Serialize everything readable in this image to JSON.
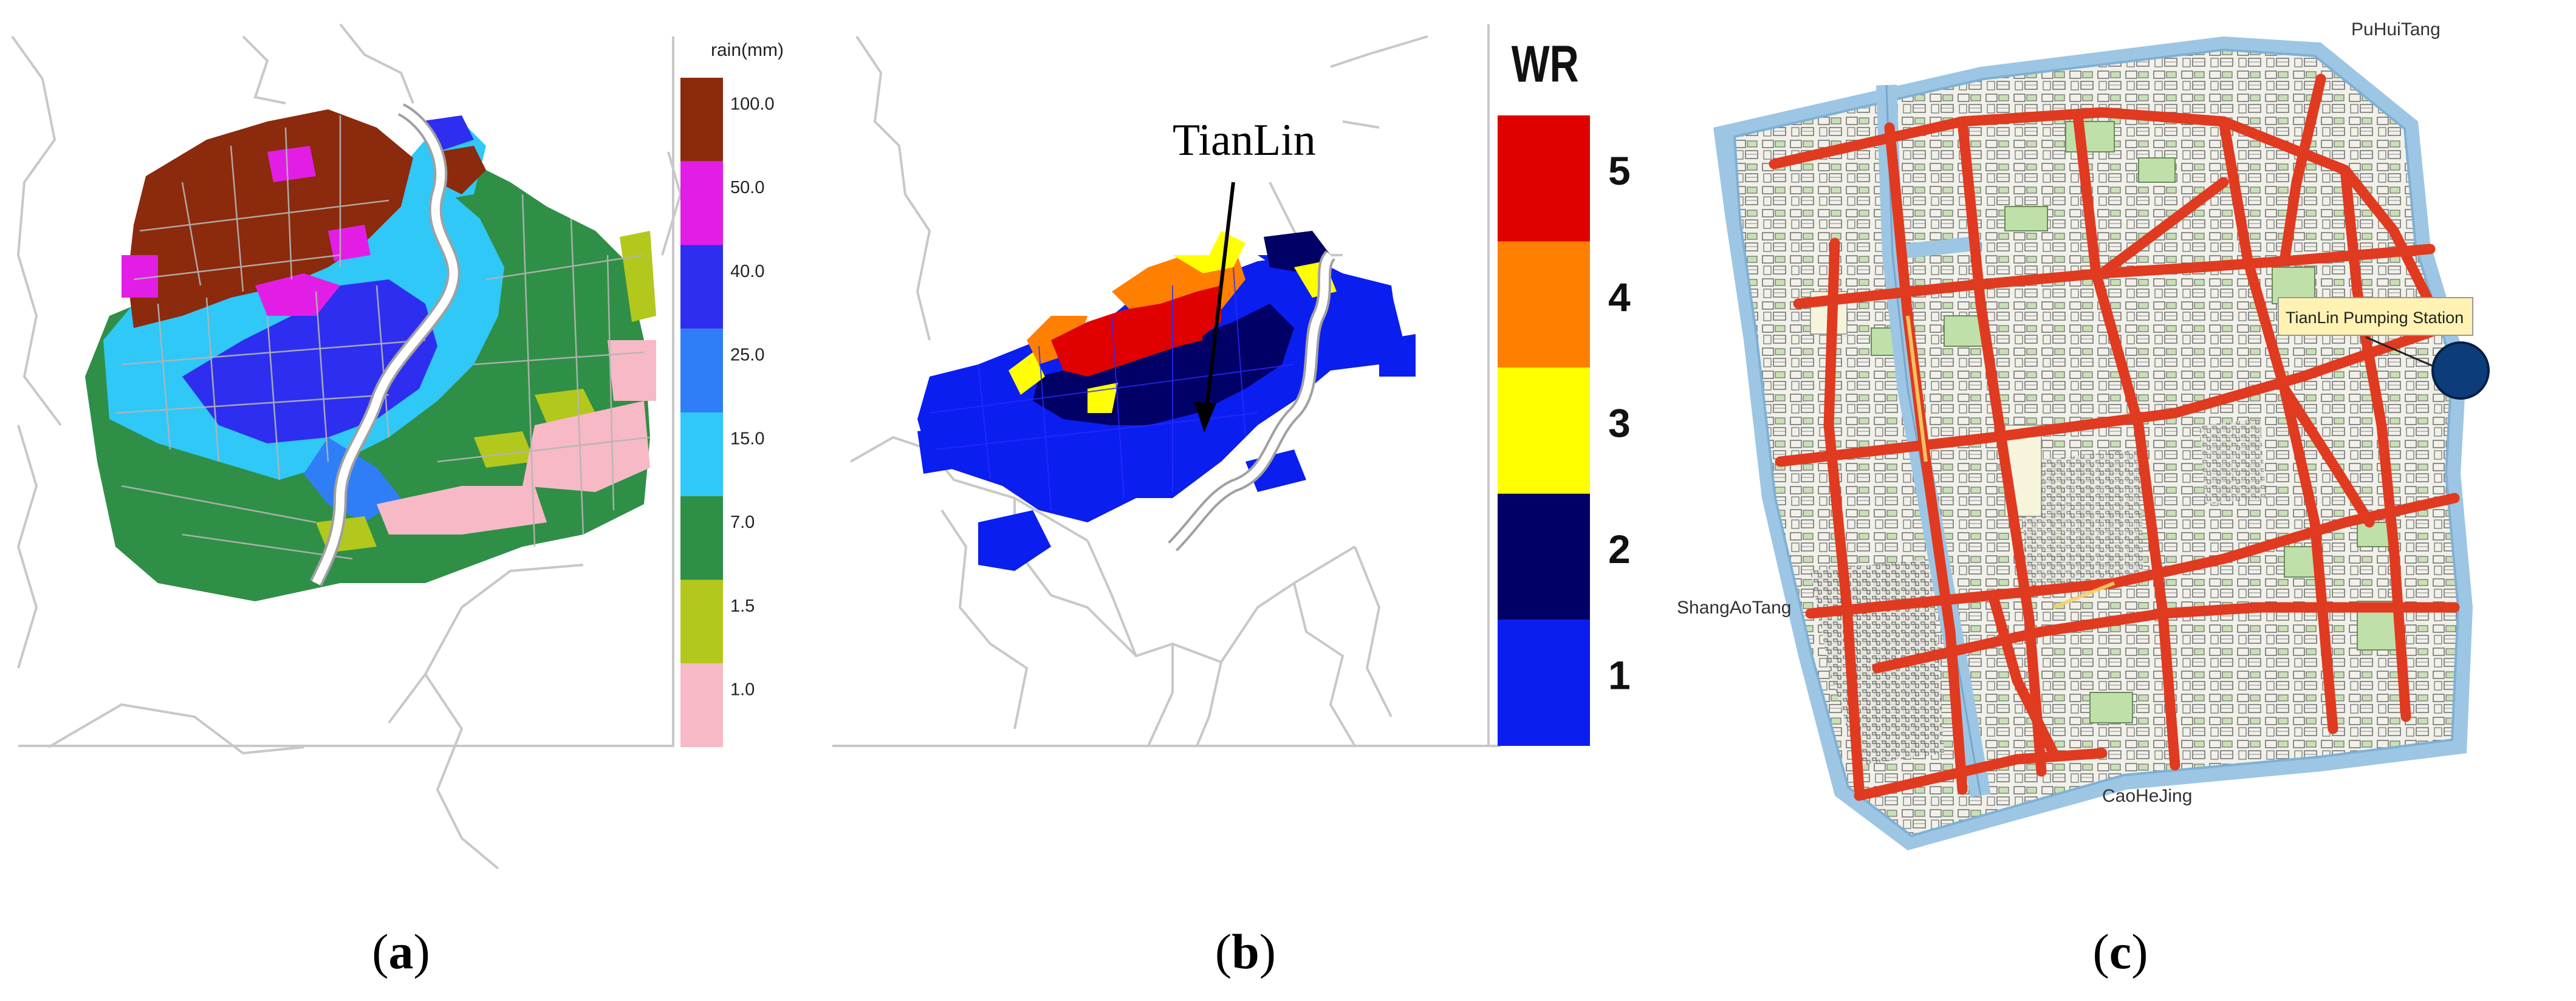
{
  "panels": {
    "a": {
      "caption_letter": "a",
      "legend_title": "rain(mm)",
      "legend": [
        {
          "label": "100.0",
          "color": "#8b2a0c"
        },
        {
          "label": "50.0",
          "color": "#e21ee6"
        },
        {
          "label": "40.0",
          "color": "#2e2ef0"
        },
        {
          "label": "25.0",
          "color": "#2f7ef7"
        },
        {
          "label": "15.0",
          "color": "#2fc8f7"
        },
        {
          "label": "7.0",
          "color": "#2f8f47"
        },
        {
          "label": "1.5",
          "color": "#b3c81c"
        },
        {
          "label": "1.0",
          "color": "#f7b9c6"
        }
      ]
    },
    "b": {
      "caption_letter": "b",
      "legend_title": "WR",
      "annotation": "TianLin",
      "legend": [
        {
          "label": "5",
          "color": "#e00000"
        },
        {
          "label": "4",
          "color": "#ff7f00"
        },
        {
          "label": "3",
          "color": "#ffff00"
        },
        {
          "label": "2",
          "color": "#000066"
        },
        {
          "label": "1",
          "color": "#0a1ef0"
        }
      ]
    },
    "c": {
      "caption_letter": "c",
      "labels": {
        "northeast": "PuHuiTang",
        "west": "ShangAoTang",
        "south": "CaoHeJing",
        "station": "TianLin Pumping Station"
      },
      "colors": {
        "river": "#9cc6e4",
        "road": "#e03a20",
        "station": "#0c3d7a",
        "callout": "#fff2b3"
      }
    }
  }
}
